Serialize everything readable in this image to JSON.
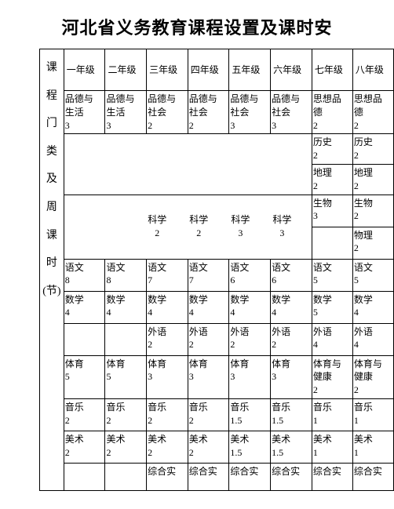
{
  "title": "河北省义务教育课程设置及课时安",
  "headers": [
    "一年级",
    "二年级",
    "三年级",
    "四年级",
    "五年级",
    "六年级",
    "七年级",
    "八年级"
  ],
  "vlabel": [
    "课",
    "程",
    "门",
    "类",
    "及",
    "周",
    "课",
    "时",
    "(节)"
  ],
  "r_moral": [
    "品德与\n生活\n3",
    "品德与\n生活\n3",
    "品德与\n社会\n2",
    "品德与\n社会\n2",
    "品德与\n社会\n3",
    "品德与\n社会\n3",
    "思想品\n德\n2",
    "思想品\n德\n2"
  ],
  "history7": "历史\n2",
  "history8": "历史\n2",
  "geo7": "地理\n2",
  "geo8": "地理\n2",
  "bio7": "生物\n3",
  "bio8": "生物\n2",
  "phy8": "物理\n2",
  "science": [
    {
      "label": "科学",
      "num": "2"
    },
    {
      "label": "科学",
      "num": "2"
    },
    {
      "label": "科学",
      "num": "3"
    },
    {
      "label": "科学",
      "num": "3"
    }
  ],
  "chinese": [
    "语文\n8",
    "语文\n8",
    "语文\n7",
    "语文\n7",
    "语文\n6",
    "语文\n6",
    "语文\n5",
    "语文\n5"
  ],
  "math": [
    "数学\n4",
    "数学\n4",
    "数学\n4",
    "数学\n4",
    "数学\n4",
    "数学\n4",
    "数学\n5",
    "数学\n4"
  ],
  "foreign": [
    "",
    "",
    "外语\n2",
    "外语\n2",
    "外语\n2",
    "外语\n2",
    "外语\n4",
    "外语\n4"
  ],
  "pe": [
    "体育\n5",
    "体育\n5",
    "体育\n3",
    "体育\n3",
    "体育\n3",
    "体育\n3",
    "体育与\n健康\n2",
    "体育与\n健康\n2"
  ],
  "music": [
    "音乐\n2",
    "音乐\n2",
    "音乐\n2",
    "音乐\n2",
    "音乐\n1.5",
    "音乐\n1.5",
    "音乐\n1",
    "音乐\n1"
  ],
  "art": [
    "美术\n2",
    "美术\n2",
    "美术\n2",
    "美术\n2",
    "美术\n1.5",
    "美术\n1.5",
    "美术\n1",
    "美术\n1"
  ],
  "zonghe": [
    "",
    "",
    "综合实",
    "综合实",
    "综合实",
    "综合实",
    "综合实",
    "综合实"
  ]
}
